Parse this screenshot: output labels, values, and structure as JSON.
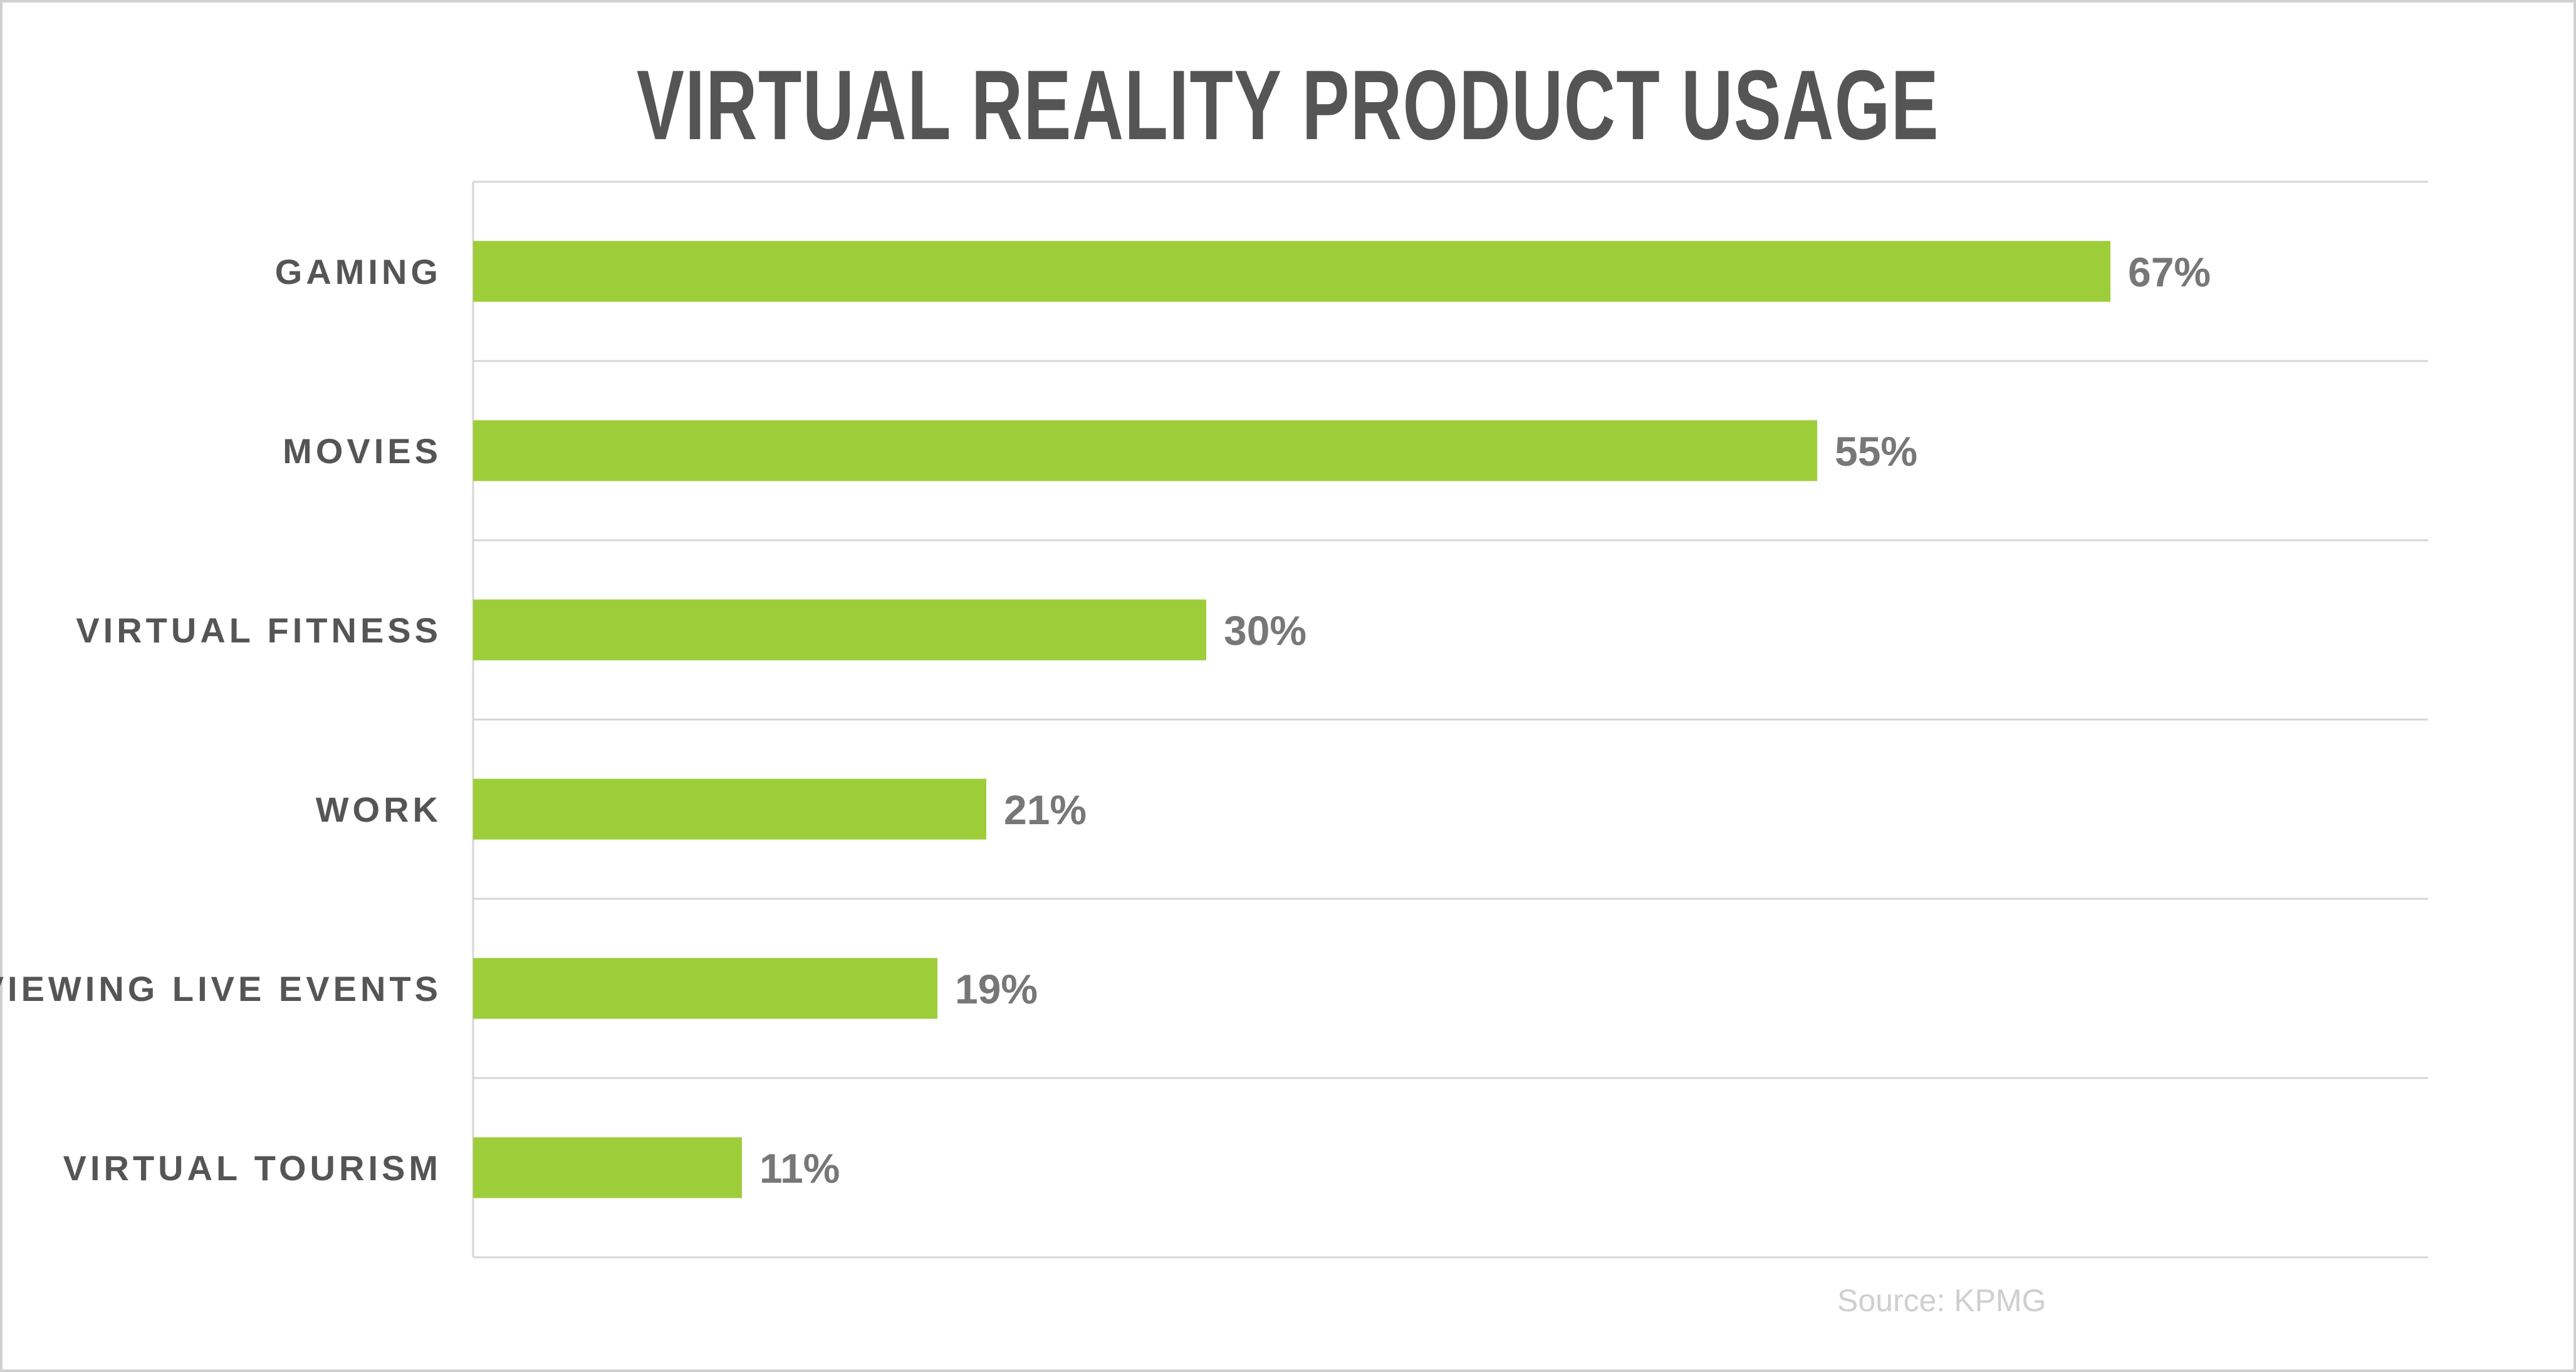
{
  "chart_data": {
    "type": "bar",
    "orientation": "horizontal",
    "title": "VIRTUAL REALITY PRODUCT USAGE",
    "categories": [
      "GAMING",
      "MOVIES",
      "VIRTUAL FITNESS",
      "WORK",
      "VIEWING LIVE EVENTS",
      "VIRTUAL TOURISM"
    ],
    "values": [
      67,
      55,
      30,
      21,
      19,
      11
    ],
    "value_labels": [
      "67%",
      "55%",
      "30%",
      "21%",
      "19%",
      "11%"
    ],
    "xlim": [
      0,
      80
    ],
    "grid": true,
    "bar_color": "#9ecd3a",
    "source": "Source: KPMG"
  }
}
